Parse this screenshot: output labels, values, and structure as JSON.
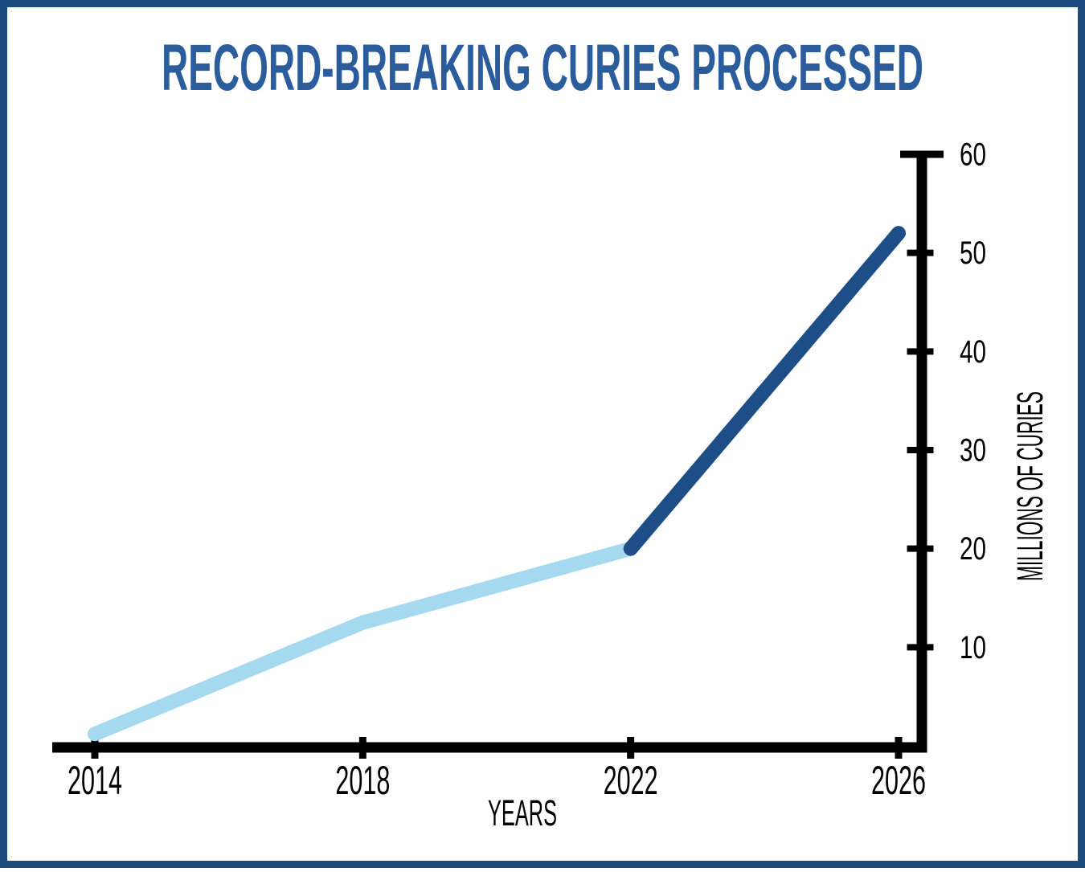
{
  "frame": {
    "border_color": "#1c4b80",
    "background_color": "#ffffff"
  },
  "title": {
    "text": "RECORD-BREAKING CURIES PROCESSED",
    "color": "#2b5c9c"
  },
  "chart_data": {
    "type": "line",
    "title": "RECORD-BREAKING CURIES PROCESSED",
    "xlabel": "YEARS",
    "ylabel": "MILLIONS OF CURIES",
    "x_ticks": [
      2014,
      2018,
      2022,
      2026
    ],
    "y_ticks": [
      10,
      20,
      30,
      40,
      50,
      60
    ],
    "xlim": [
      2014,
      2026
    ],
    "ylim": [
      0,
      60
    ],
    "grid": false,
    "legend_position": "none",
    "axis_color": "#000000",
    "axis_side": "right",
    "series": [
      {
        "name": "curies-processed-historical",
        "color": "#a4d9f0",
        "x": [
          2014,
          2018,
          2022
        ],
        "values": [
          1.2,
          12.5,
          20
        ]
      },
      {
        "name": "curies-processed-projected",
        "color": "#1d4e87",
        "x": [
          2022,
          2026
        ],
        "values": [
          20,
          52
        ]
      }
    ]
  }
}
